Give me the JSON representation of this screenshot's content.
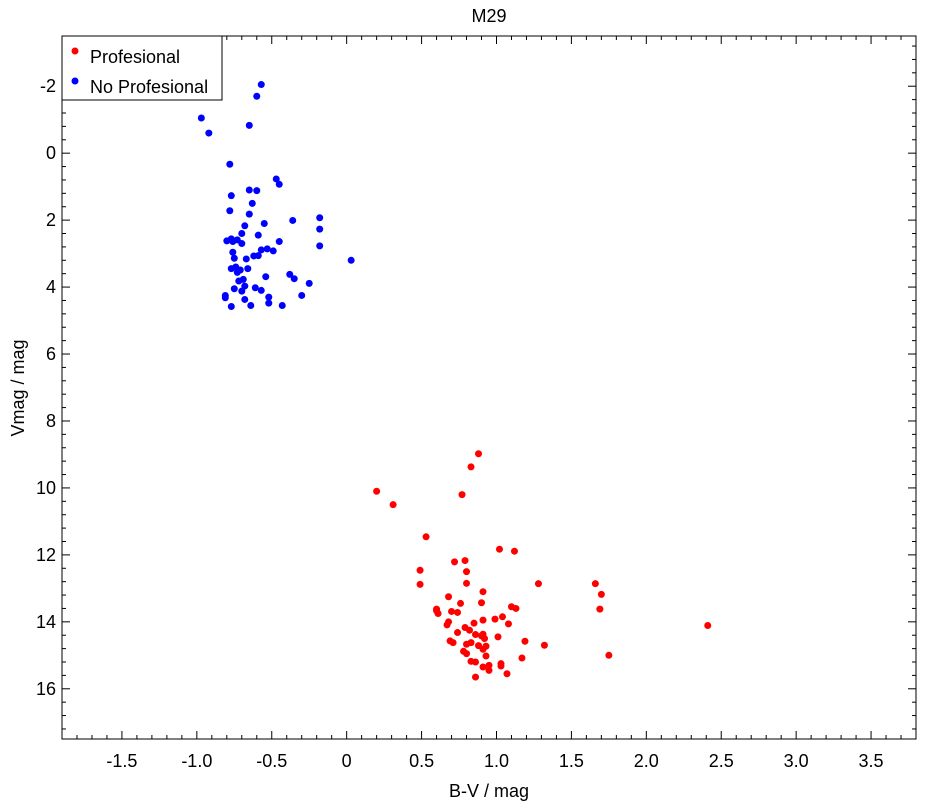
{
  "chart_data": {
    "type": "scatter",
    "title": "M29",
    "xlabel": "B-V / mag",
    "ylabel": "Vmag / mag",
    "xlim": [
      -1.9,
      3.8
    ],
    "ylim": [
      17.5,
      -3.5
    ],
    "y_inverted": true,
    "x_ticks": [
      -1.5,
      -1.0,
      -0.5,
      0,
      0.5,
      1.0,
      1.5,
      2.0,
      2.5,
      3.0,
      3.5
    ],
    "x_tick_labels": [
      "-1.5",
      "-1.0",
      "-0.5",
      "0",
      "0.5",
      "1.0",
      "1.5",
      "2.0",
      "2.5",
      "3.0",
      "3.5"
    ],
    "y_ticks": [
      -2,
      0,
      2,
      4,
      6,
      8,
      10,
      12,
      14,
      16
    ],
    "y_tick_labels": [
      "-2",
      "0",
      "2",
      "4",
      "6",
      "8",
      "10",
      "12",
      "14",
      "16"
    ],
    "grid": false,
    "legend_position": "top-left",
    "series": [
      {
        "name": "Profesional",
        "color": "#ff0000",
        "points": [
          [
            0.88,
            8.98
          ],
          [
            0.83,
            9.37
          ],
          [
            0.77,
            10.2
          ],
          [
            0.2,
            10.1
          ],
          [
            0.31,
            10.5
          ],
          [
            0.53,
            11.46
          ],
          [
            1.02,
            11.83
          ],
          [
            1.12,
            11.89
          ],
          [
            0.72,
            12.21
          ],
          [
            0.79,
            12.17
          ],
          [
            0.49,
            12.46
          ],
          [
            0.8,
            12.5
          ],
          [
            1.28,
            12.86
          ],
          [
            1.66,
            12.86
          ],
          [
            0.49,
            12.88
          ],
          [
            0.8,
            12.85
          ],
          [
            0.91,
            13.1
          ],
          [
            1.7,
            13.18
          ],
          [
            0.68,
            13.25
          ],
          [
            0.76,
            13.45
          ],
          [
            0.9,
            13.43
          ],
          [
            1.1,
            13.55
          ],
          [
            1.13,
            13.6
          ],
          [
            0.6,
            13.62
          ],
          [
            1.69,
            13.62
          ],
          [
            0.6,
            13.67
          ],
          [
            0.7,
            13.69
          ],
          [
            0.74,
            13.72
          ],
          [
            0.61,
            13.75
          ],
          [
            1.04,
            13.85
          ],
          [
            0.99,
            13.92
          ],
          [
            0.91,
            13.95
          ],
          [
            0.68,
            14.0
          ],
          [
            0.85,
            14.04
          ],
          [
            1.08,
            14.06
          ],
          [
            0.67,
            14.09
          ],
          [
            2.41,
            14.11
          ],
          [
            0.79,
            14.17
          ],
          [
            0.82,
            14.25
          ],
          [
            0.74,
            14.32
          ],
          [
            0.86,
            14.38
          ],
          [
            0.91,
            14.37
          ],
          [
            0.9,
            14.42
          ],
          [
            1.01,
            14.45
          ],
          [
            0.92,
            14.5
          ],
          [
            0.69,
            14.57
          ],
          [
            0.71,
            14.62
          ],
          [
            0.83,
            14.62
          ],
          [
            1.19,
            14.58
          ],
          [
            0.8,
            14.67
          ],
          [
            0.88,
            14.71
          ],
          [
            0.93,
            14.73
          ],
          [
            1.32,
            14.7
          ],
          [
            0.91,
            14.82
          ],
          [
            0.78,
            14.88
          ],
          [
            0.8,
            14.95
          ],
          [
            0.93,
            15.02
          ],
          [
            1.17,
            15.08
          ],
          [
            1.75,
            15.0
          ],
          [
            0.83,
            15.18
          ],
          [
            0.86,
            15.2
          ],
          [
            1.03,
            15.25
          ],
          [
            0.95,
            15.3
          ],
          [
            0.91,
            15.35
          ],
          [
            1.03,
            15.32
          ],
          [
            0.95,
            15.45
          ],
          [
            1.07,
            15.55
          ],
          [
            0.86,
            15.65
          ]
        ]
      },
      {
        "name": "No Profesional",
        "color": "#0000ff",
        "points": [
          [
            -0.57,
            -2.05
          ],
          [
            -0.6,
            -1.7
          ],
          [
            -0.97,
            -1.05
          ],
          [
            -0.65,
            -0.83
          ],
          [
            -0.92,
            -0.6
          ],
          [
            -0.78,
            0.33
          ],
          [
            -0.47,
            0.77
          ],
          [
            -0.45,
            0.93
          ],
          [
            -0.65,
            1.1
          ],
          [
            -0.6,
            1.12
          ],
          [
            -0.77,
            1.27
          ],
          [
            -0.63,
            1.5
          ],
          [
            -0.78,
            1.72
          ],
          [
            -0.65,
            1.82
          ],
          [
            -0.18,
            1.93
          ],
          [
            -0.36,
            2.01
          ],
          [
            -0.55,
            2.1
          ],
          [
            -0.68,
            2.17
          ],
          [
            -0.18,
            2.27
          ],
          [
            -0.7,
            2.4
          ],
          [
            -0.59,
            2.45
          ],
          [
            -0.77,
            2.56
          ],
          [
            -0.73,
            2.59
          ],
          [
            -0.8,
            2.62
          ],
          [
            -0.76,
            2.64
          ],
          [
            -0.45,
            2.64
          ],
          [
            -0.7,
            2.7
          ],
          [
            -0.18,
            2.77
          ],
          [
            -0.53,
            2.86
          ],
          [
            -0.57,
            2.89
          ],
          [
            -0.49,
            2.92
          ],
          [
            -0.76,
            2.96
          ],
          [
            -0.62,
            3.07
          ],
          [
            -0.59,
            3.06
          ],
          [
            -0.75,
            3.14
          ],
          [
            -0.67,
            3.16
          ],
          [
            0.03,
            3.2
          ],
          [
            -0.74,
            3.4
          ],
          [
            -0.77,
            3.45
          ],
          [
            -0.66,
            3.45
          ],
          [
            -0.71,
            3.49
          ],
          [
            -0.73,
            3.56
          ],
          [
            -0.38,
            3.62
          ],
          [
            -0.54,
            3.69
          ],
          [
            -0.35,
            3.75
          ],
          [
            -0.69,
            3.77
          ],
          [
            -0.72,
            3.82
          ],
          [
            -0.25,
            3.89
          ],
          [
            -0.68,
            3.97
          ],
          [
            -0.61,
            4.02
          ],
          [
            -0.75,
            4.05
          ],
          [
            -0.57,
            4.1
          ],
          [
            -0.7,
            4.12
          ],
          [
            -0.81,
            4.25
          ],
          [
            -0.3,
            4.25
          ],
          [
            -0.81,
            4.32
          ],
          [
            -0.52,
            4.3
          ],
          [
            -0.68,
            4.37
          ],
          [
            -0.52,
            4.48
          ],
          [
            -0.43,
            4.55
          ],
          [
            -0.64,
            4.55
          ],
          [
            -0.77,
            4.58
          ]
        ]
      }
    ]
  }
}
